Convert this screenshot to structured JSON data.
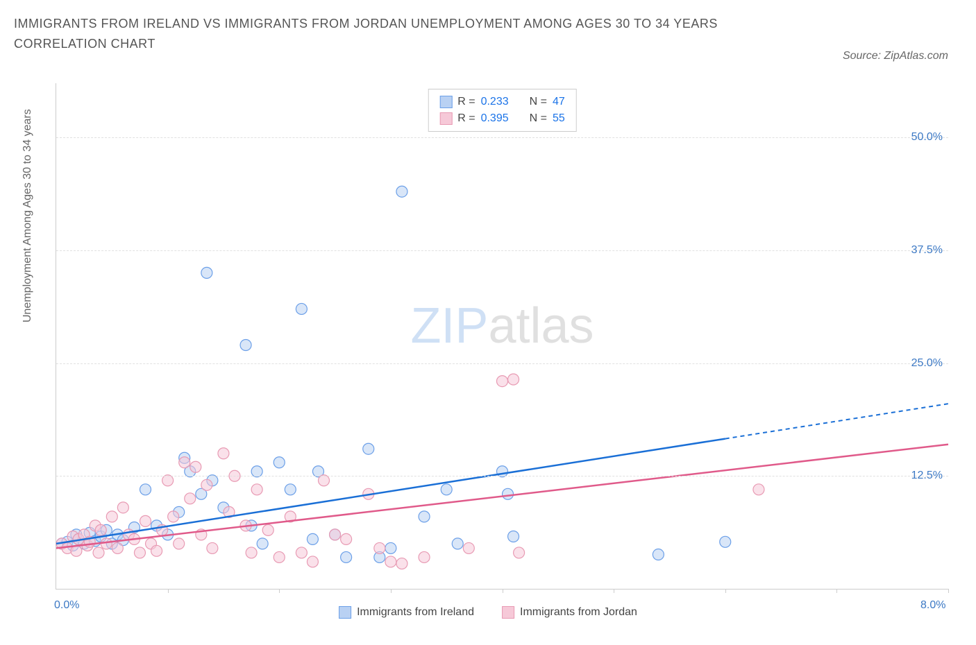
{
  "title": "IMMIGRANTS FROM IRELAND VS IMMIGRANTS FROM JORDAN UNEMPLOYMENT AMONG AGES 30 TO 34 YEARS CORRELATION CHART",
  "source": "Source: ZipAtlas.com",
  "y_axis_label": "Unemployment Among Ages 30 to 34 years",
  "watermark_zip": "ZIP",
  "watermark_atlas": "atlas",
  "chart": {
    "type": "scatter",
    "xlim": [
      0,
      8
    ],
    "ylim": [
      0,
      56
    ],
    "x_tick_positions": [
      1,
      2,
      3,
      4,
      5,
      6,
      7,
      8
    ],
    "y_ticks": [
      12.5,
      25.0,
      37.5,
      50.0
    ],
    "y_tick_labels": [
      "12.5%",
      "25.0%",
      "37.5%",
      "50.0%"
    ],
    "x_corner_left": "0.0%",
    "x_corner_right": "8.0%",
    "grid_color": "#e0e0e0",
    "axis_color": "#cccccc",
    "background_color": "#ffffff",
    "label_color": "#3b78c4",
    "marker_radius": 8,
    "marker_opacity": 0.55,
    "series": [
      {
        "name": "Immigrants from Ireland",
        "stroke": "#6b9fe8",
        "fill": "#b9d1f3",
        "line_color": "#1a6fd6",
        "R": "0.233",
        "N": "47",
        "trend": {
          "x1": 0,
          "y1": 5.0,
          "x2": 8,
          "y2": 20.5,
          "solid_until_x": 6.0
        },
        "points": [
          [
            0.05,
            5.0
          ],
          [
            0.1,
            5.2
          ],
          [
            0.15,
            4.8
          ],
          [
            0.18,
            6.0
          ],
          [
            0.2,
            5.5
          ],
          [
            0.25,
            5.0
          ],
          [
            0.3,
            6.2
          ],
          [
            0.35,
            5.3
          ],
          [
            0.4,
            5.8
          ],
          [
            0.45,
            6.5
          ],
          [
            0.5,
            5.0
          ],
          [
            0.55,
            6.0
          ],
          [
            0.6,
            5.4
          ],
          [
            0.7,
            6.8
          ],
          [
            0.8,
            11.0
          ],
          [
            0.9,
            7.0
          ],
          [
            1.0,
            6.0
          ],
          [
            1.1,
            8.5
          ],
          [
            1.15,
            14.5
          ],
          [
            1.2,
            13.0
          ],
          [
            1.3,
            10.5
          ],
          [
            1.35,
            35.0
          ],
          [
            1.4,
            12.0
          ],
          [
            1.5,
            9.0
          ],
          [
            1.7,
            27.0
          ],
          [
            1.75,
            7.0
          ],
          [
            1.8,
            13.0
          ],
          [
            1.85,
            5.0
          ],
          [
            2.0,
            14.0
          ],
          [
            2.1,
            11.0
          ],
          [
            2.2,
            31.0
          ],
          [
            2.3,
            5.5
          ],
          [
            2.35,
            13.0
          ],
          [
            2.5,
            6.0
          ],
          [
            2.6,
            3.5
          ],
          [
            2.8,
            15.5
          ],
          [
            2.9,
            3.5
          ],
          [
            3.0,
            4.5
          ],
          [
            3.1,
            44.0
          ],
          [
            3.3,
            8.0
          ],
          [
            3.5,
            11.0
          ],
          [
            3.6,
            5.0
          ],
          [
            4.0,
            13.0
          ],
          [
            4.05,
            10.5
          ],
          [
            4.1,
            5.8
          ],
          [
            5.4,
            3.8
          ],
          [
            6.0,
            5.2
          ]
        ]
      },
      {
        "name": "Immigrants from Jordan",
        "stroke": "#e89ab3",
        "fill": "#f6c9d8",
        "line_color": "#e05a8a",
        "R": "0.395",
        "N": "55",
        "trend": {
          "x1": 0,
          "y1": 4.5,
          "x2": 8,
          "y2": 16.0,
          "solid_until_x": 8.0
        },
        "points": [
          [
            0.05,
            5.0
          ],
          [
            0.1,
            4.5
          ],
          [
            0.15,
            5.8
          ],
          [
            0.18,
            4.2
          ],
          [
            0.2,
            5.5
          ],
          [
            0.25,
            6.0
          ],
          [
            0.28,
            4.8
          ],
          [
            0.3,
            5.2
          ],
          [
            0.35,
            7.0
          ],
          [
            0.38,
            4.0
          ],
          [
            0.4,
            6.5
          ],
          [
            0.45,
            5.0
          ],
          [
            0.5,
            8.0
          ],
          [
            0.55,
            4.5
          ],
          [
            0.6,
            9.0
          ],
          [
            0.65,
            6.0
          ],
          [
            0.7,
            5.5
          ],
          [
            0.75,
            4.0
          ],
          [
            0.8,
            7.5
          ],
          [
            0.85,
            5.0
          ],
          [
            0.9,
            4.2
          ],
          [
            0.95,
            6.5
          ],
          [
            1.0,
            12.0
          ],
          [
            1.05,
            8.0
          ],
          [
            1.1,
            5.0
          ],
          [
            1.15,
            14.0
          ],
          [
            1.2,
            10.0
          ],
          [
            1.25,
            13.5
          ],
          [
            1.3,
            6.0
          ],
          [
            1.35,
            11.5
          ],
          [
            1.4,
            4.5
          ],
          [
            1.5,
            15.0
          ],
          [
            1.55,
            8.5
          ],
          [
            1.6,
            12.5
          ],
          [
            1.7,
            7.0
          ],
          [
            1.75,
            4.0
          ],
          [
            1.8,
            11.0
          ],
          [
            1.9,
            6.5
          ],
          [
            2.0,
            3.5
          ],
          [
            2.1,
            8.0
          ],
          [
            2.2,
            4.0
          ],
          [
            2.3,
            3.0
          ],
          [
            2.4,
            12.0
          ],
          [
            2.6,
            5.5
          ],
          [
            2.8,
            10.5
          ],
          [
            2.9,
            4.5
          ],
          [
            3.0,
            3.0
          ],
          [
            3.1,
            2.8
          ],
          [
            3.3,
            3.5
          ],
          [
            3.7,
            4.5
          ],
          [
            4.0,
            23.0
          ],
          [
            4.1,
            23.2
          ],
          [
            4.15,
            4.0
          ],
          [
            6.3,
            11.0
          ],
          [
            2.5,
            6.0
          ]
        ]
      }
    ]
  },
  "legend_stats": {
    "R_label": "R =",
    "N_label": "N ="
  },
  "bottom_legend": [
    {
      "label": "Immigrants from Ireland",
      "fill": "#b9d1f3",
      "stroke": "#6b9fe8"
    },
    {
      "label": "Immigrants from Jordan",
      "fill": "#f6c9d8",
      "stroke": "#e89ab3"
    }
  ]
}
